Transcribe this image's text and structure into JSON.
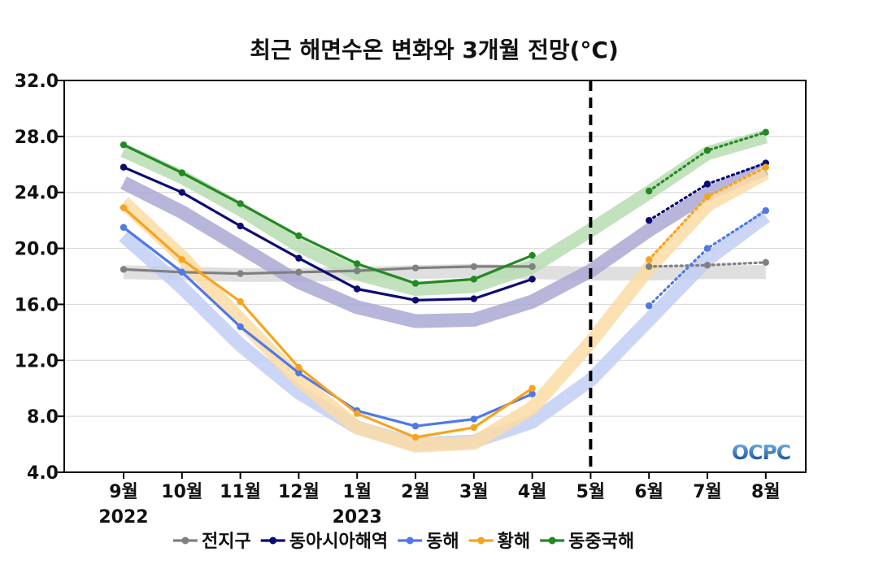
{
  "chart_data": {
    "type": "line",
    "title": "최근 해면수온 변화와 3개월 전망(°C)",
    "categories": [
      "9월",
      "10월",
      "11월",
      "12월",
      "1월",
      "2월",
      "3월",
      "4월",
      "5월",
      "6월",
      "7월",
      "8월"
    ],
    "year_labels": [
      {
        "category": "9월",
        "text": "2022"
      },
      {
        "category": "1월",
        "text": "2023"
      }
    ],
    "yticks": [
      "4.0",
      "8.0",
      "12.0",
      "16.0",
      "20.0",
      "24.0",
      "28.0",
      "32.0"
    ],
    "ylim": [
      4.0,
      32.0
    ],
    "grid": true,
    "forecast_divider": "5월",
    "logo": "OCPC",
    "legend_position": "bottom",
    "series": [
      {
        "name": "전지구",
        "color": "#808080",
        "band_color": "#d9d9d9",
        "observed": [
          18.5,
          18.3,
          18.2,
          18.3,
          18.4,
          18.6,
          18.7,
          18.7,
          null,
          null,
          null,
          null
        ],
        "forecast": [
          null,
          null,
          null,
          null,
          null,
          null,
          null,
          null,
          null,
          18.7,
          18.8,
          19.0
        ],
        "normal": [
          18.3,
          18.2,
          18.1,
          18.1,
          18.2,
          18.3,
          18.4,
          18.3,
          18.2,
          18.2,
          18.3,
          18.3
        ]
      },
      {
        "name": "동아시아해역",
        "color": "#0b0b73",
        "band_color": "#aaa8d4",
        "observed": [
          25.8,
          24.0,
          21.6,
          19.3,
          17.1,
          16.3,
          16.4,
          17.8,
          null,
          null,
          null,
          null
        ],
        "forecast": [
          null,
          null,
          null,
          null,
          null,
          null,
          null,
          null,
          null,
          22.0,
          24.6,
          26.1
        ],
        "normal": [
          24.7,
          22.6,
          20.1,
          17.6,
          15.8,
          14.8,
          14.9,
          16.2,
          18.4,
          21.3,
          23.9,
          25.7
        ]
      },
      {
        "name": "동해",
        "color": "#4f79e8",
        "band_color": "#c2cff6",
        "observed": [
          21.5,
          18.3,
          14.4,
          11.1,
          8.4,
          7.3,
          7.8,
          9.6,
          null,
          null,
          null,
          null
        ],
        "forecast": [
          null,
          null,
          null,
          null,
          null,
          null,
          null,
          null,
          null,
          15.9,
          20.0,
          22.7
        ],
        "normal": [
          20.9,
          17.2,
          13.1,
          9.7,
          7.2,
          6.0,
          6.2,
          7.6,
          10.6,
          14.9,
          19.2,
          22.3
        ]
      },
      {
        "name": "황해",
        "color": "#f6a41c",
        "band_color": "#fbdca6",
        "observed": [
          22.9,
          19.2,
          16.2,
          11.5,
          8.2,
          6.5,
          7.2,
          10.0,
          null,
          null,
          null,
          null
        ],
        "forecast": [
          null,
          null,
          null,
          null,
          null,
          null,
          null,
          null,
          null,
          19.2,
          23.7,
          25.8
        ],
        "normal": [
          23.3,
          19.4,
          14.9,
          10.6,
          7.2,
          5.9,
          6.1,
          8.6,
          13.3,
          18.6,
          23.1,
          25.4
        ]
      },
      {
        "name": "동중국해",
        "color": "#228a22",
        "band_color": "#b7dcb1",
        "observed": [
          27.4,
          25.4,
          23.2,
          20.9,
          18.9,
          17.5,
          17.8,
          19.5,
          null,
          null,
          null,
          null
        ],
        "forecast": [
          null,
          null,
          null,
          null,
          null,
          null,
          null,
          null,
          null,
          24.1,
          27.0,
          28.3
        ],
        "normal": [
          27.0,
          25.1,
          22.8,
          20.2,
          18.2,
          17.1,
          17.3,
          18.7,
          21.3,
          24.0,
          26.8,
          28.0
        ]
      }
    ]
  }
}
